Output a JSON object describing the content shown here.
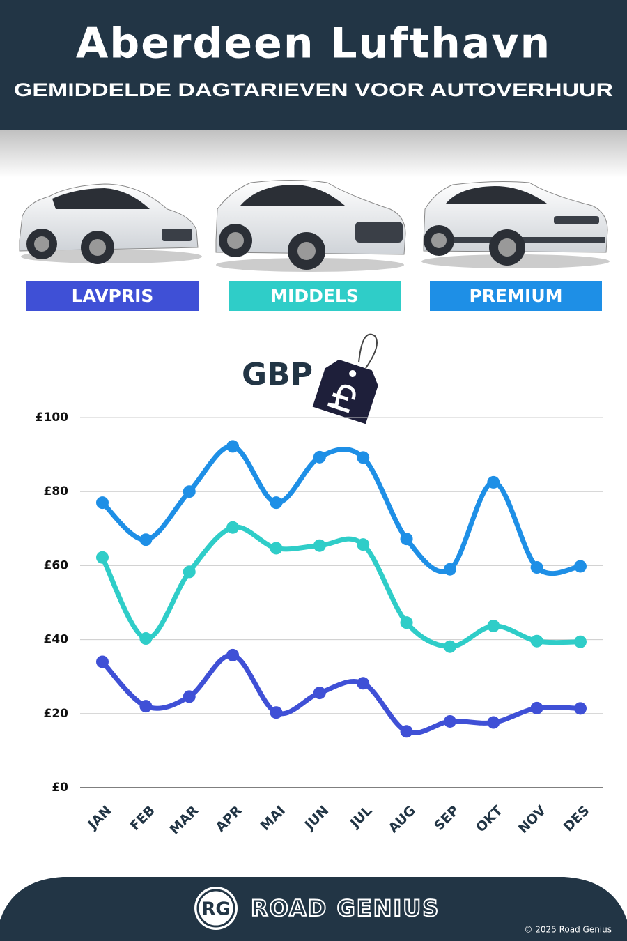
{
  "chart_data": {
    "type": "line",
    "title": "Aberdeen Lufthavn",
    "subtitle": "GEMIDDELDE DAGTARIEVEN VOOR AUTOVERHUUR",
    "y_label": "GBP",
    "categories": [
      "JAN",
      "FEB",
      "MAR",
      "APR",
      "MAI",
      "JUN",
      "JUL",
      "AUG",
      "SEP",
      "OKT",
      "NOV",
      "DES"
    ],
    "series": [
      {
        "name": "LAVPRIS",
        "color": "#3f50d6",
        "values": [
          34,
          22,
          24.6,
          35.8,
          20.3,
          25.6,
          28.2,
          15.2,
          17.9,
          17.6,
          21.5,
          21.4
        ]
      },
      {
        "name": "MIDDELS",
        "color": "#2fcdc8",
        "values": [
          62.2,
          40.3,
          58.3,
          70.3,
          64.7,
          65.4,
          65.7,
          44.6,
          38.1,
          43.7,
          39.6,
          39.4
        ]
      },
      {
        "name": "PREMIUM",
        "color": "#1e8fe6",
        "values": [
          77,
          67,
          80,
          92.2,
          77,
          89.3,
          89.2,
          67.2,
          59,
          82.5,
          59.5,
          59.8
        ]
      }
    ],
    "ylim": [
      0,
      100
    ],
    "yticks": [
      {
        "value": 0,
        "label": "£0"
      },
      {
        "value": 20,
        "label": "£20"
      },
      {
        "value": 40,
        "label": "£40"
      },
      {
        "value": 60,
        "label": "£60"
      },
      {
        "value": 80,
        "label": "£80"
      },
      {
        "value": 100,
        "label": "£100"
      }
    ],
    "grid": true
  },
  "brand": {
    "logo": "RG",
    "name": "ROAD GENIUS",
    "copyright": "© 2025 Road Genius"
  }
}
